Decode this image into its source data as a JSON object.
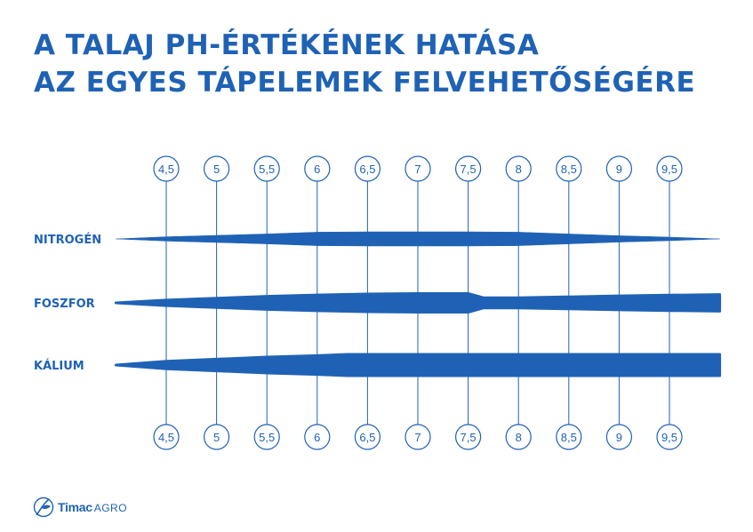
{
  "title": {
    "line1": "A TALAJ PH-ÉRTÉKÉNEK HATÁSA",
    "line2": "AZ EGYES TÁPELEMEK FELVEHETŐSÉGÉRE"
  },
  "colors": {
    "primary": "#1f62b5",
    "line": "#1f62b5",
    "background": "#ffffff"
  },
  "logo": {
    "icon": "timac-leaf-icon",
    "brand": "Timac",
    "sub": "AGRO"
  },
  "chart_data": {
    "type": "area",
    "ph_ticks": [
      "4,5",
      "5",
      "5,5",
      "6",
      "6,5",
      "7",
      "7,5",
      "8",
      "8,5",
      "9",
      "9,5"
    ],
    "x_values": [
      4.5,
      5,
      5.5,
      6,
      6.5,
      7,
      7.5,
      8,
      8.5,
      9,
      9.5
    ],
    "nutrients": [
      {
        "name": "NITROGÉN",
        "profile": [
          [
            4.0,
            0.0
          ],
          [
            4.5,
            0.3
          ],
          [
            5.0,
            0.5
          ],
          [
            5.5,
            0.7
          ],
          [
            6.0,
            0.95
          ],
          [
            6.5,
            1.0
          ],
          [
            7.0,
            1.0
          ],
          [
            7.5,
            1.0
          ],
          [
            8.0,
            0.95
          ],
          [
            8.5,
            0.7
          ],
          [
            9.0,
            0.45
          ],
          [
            9.5,
            0.25
          ],
          [
            10.0,
            0.0
          ]
        ]
      },
      {
        "name": "FOSZFOR",
        "profile": [
          [
            4.0,
            0.0
          ],
          [
            4.5,
            0.3
          ],
          [
            5.0,
            0.5
          ],
          [
            5.5,
            0.7
          ],
          [
            6.0,
            0.85
          ],
          [
            6.5,
            0.95
          ],
          [
            7.0,
            1.0
          ],
          [
            7.5,
            1.0
          ],
          [
            7.65,
            0.55
          ],
          [
            8.0,
            0.55
          ],
          [
            8.5,
            0.65
          ],
          [
            9.0,
            0.75
          ],
          [
            9.5,
            0.83
          ],
          [
            10.0,
            0.9
          ]
        ]
      },
      {
        "name": "KÁLIUM",
        "profile": [
          [
            4.0,
            0.0
          ],
          [
            4.5,
            0.35
          ],
          [
            5.0,
            0.55
          ],
          [
            5.5,
            0.75
          ],
          [
            6.0,
            0.88
          ],
          [
            6.3,
            1.0
          ],
          [
            7.0,
            1.0
          ],
          [
            8.0,
            1.0
          ],
          [
            9.0,
            1.0
          ],
          [
            10.0,
            1.0
          ]
        ]
      }
    ]
  }
}
